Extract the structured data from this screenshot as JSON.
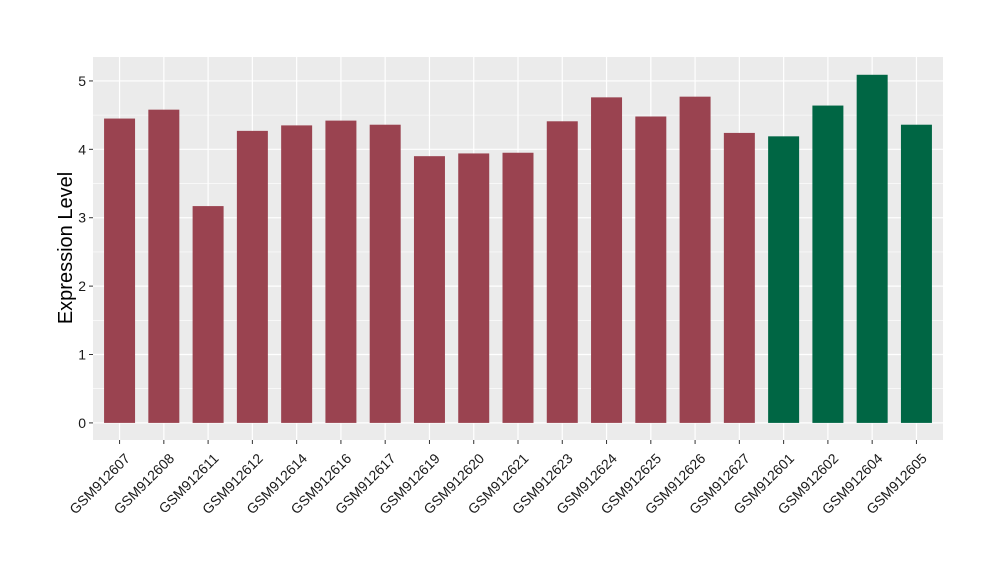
{
  "chart_data": {
    "type": "bar",
    "categories": [
      "GSM912607",
      "GSM912608",
      "GSM912611",
      "GSM912612",
      "GSM912614",
      "GSM912616",
      "GSM912617",
      "GSM912619",
      "GSM912620",
      "GSM912621",
      "GSM912623",
      "GSM912624",
      "GSM912625",
      "GSM912626",
      "GSM912627",
      "GSM912601",
      "GSM912602",
      "GSM912604",
      "GSM912605"
    ],
    "values": [
      4.45,
      4.58,
      3.17,
      4.27,
      4.35,
      4.42,
      4.36,
      3.9,
      3.94,
      3.95,
      4.41,
      4.76,
      4.48,
      4.77,
      4.24,
      4.19,
      4.64,
      5.09,
      4.36
    ],
    "bar_colors": [
      "#9a4350",
      "#9a4350",
      "#9a4350",
      "#9a4350",
      "#9a4350",
      "#9a4350",
      "#9a4350",
      "#9a4350",
      "#9a4350",
      "#9a4350",
      "#9a4350",
      "#9a4350",
      "#9a4350",
      "#9a4350",
      "#9a4350",
      "#006644",
      "#006644",
      "#006644",
      "#006644"
    ],
    "xlabel": "",
    "ylabel": "Expression Level",
    "ylim": [
      -0.25,
      5.35
    ],
    "yticks": [
      0,
      1,
      2,
      3,
      4,
      5
    ],
    "grid": true,
    "panel_background": "#ebebeb",
    "grid_color": "#ffffff"
  }
}
